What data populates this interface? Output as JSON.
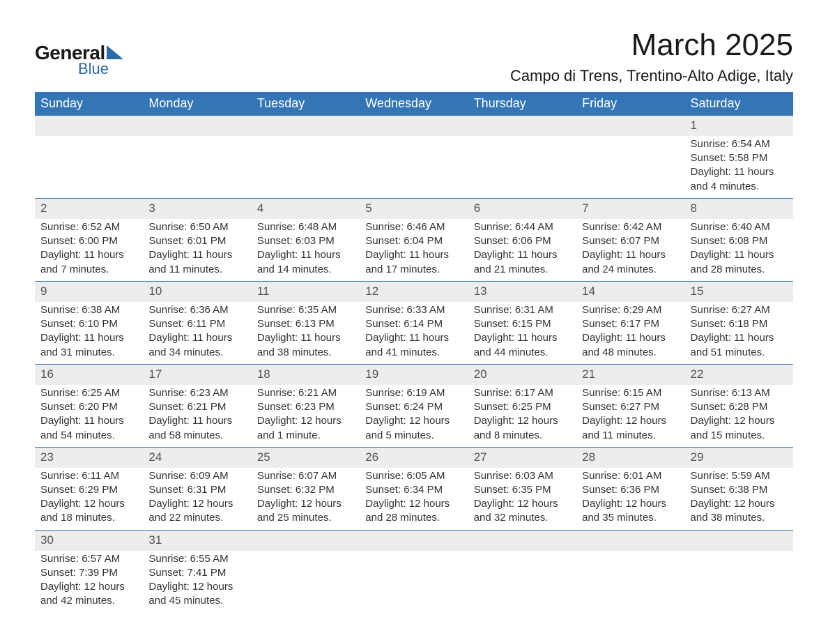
{
  "logo": {
    "text_general": "General",
    "text_blue": "Blue",
    "shape_color": "#2b6aa8"
  },
  "title": "March 2025",
  "location": "Campo di Trens, Trentino-Alto Adige, Italy",
  "colors": {
    "header_bg": "#3375b5",
    "header_text": "#ffffff",
    "daynum_bg": "#ededed",
    "row_border": "#3375b5",
    "body_text": "#333333",
    "daynum_text": "#555555"
  },
  "typography": {
    "title_fontsize": 44,
    "location_fontsize": 22,
    "header_fontsize": 18,
    "daynum_fontsize": 17,
    "body_fontsize": 15
  },
  "day_headers": [
    "Sunday",
    "Monday",
    "Tuesday",
    "Wednesday",
    "Thursday",
    "Friday",
    "Saturday"
  ],
  "weeks": [
    [
      null,
      null,
      null,
      null,
      null,
      null,
      {
        "n": "1",
        "sr": "Sunrise: 6:54 AM",
        "ss": "Sunset: 5:58 PM",
        "dl": "Daylight: 11 hours and 4 minutes."
      }
    ],
    [
      {
        "n": "2",
        "sr": "Sunrise: 6:52 AM",
        "ss": "Sunset: 6:00 PM",
        "dl": "Daylight: 11 hours and 7 minutes."
      },
      {
        "n": "3",
        "sr": "Sunrise: 6:50 AM",
        "ss": "Sunset: 6:01 PM",
        "dl": "Daylight: 11 hours and 11 minutes."
      },
      {
        "n": "4",
        "sr": "Sunrise: 6:48 AM",
        "ss": "Sunset: 6:03 PM",
        "dl": "Daylight: 11 hours and 14 minutes."
      },
      {
        "n": "5",
        "sr": "Sunrise: 6:46 AM",
        "ss": "Sunset: 6:04 PM",
        "dl": "Daylight: 11 hours and 17 minutes."
      },
      {
        "n": "6",
        "sr": "Sunrise: 6:44 AM",
        "ss": "Sunset: 6:06 PM",
        "dl": "Daylight: 11 hours and 21 minutes."
      },
      {
        "n": "7",
        "sr": "Sunrise: 6:42 AM",
        "ss": "Sunset: 6:07 PM",
        "dl": "Daylight: 11 hours and 24 minutes."
      },
      {
        "n": "8",
        "sr": "Sunrise: 6:40 AM",
        "ss": "Sunset: 6:08 PM",
        "dl": "Daylight: 11 hours and 28 minutes."
      }
    ],
    [
      {
        "n": "9",
        "sr": "Sunrise: 6:38 AM",
        "ss": "Sunset: 6:10 PM",
        "dl": "Daylight: 11 hours and 31 minutes."
      },
      {
        "n": "10",
        "sr": "Sunrise: 6:36 AM",
        "ss": "Sunset: 6:11 PM",
        "dl": "Daylight: 11 hours and 34 minutes."
      },
      {
        "n": "11",
        "sr": "Sunrise: 6:35 AM",
        "ss": "Sunset: 6:13 PM",
        "dl": "Daylight: 11 hours and 38 minutes."
      },
      {
        "n": "12",
        "sr": "Sunrise: 6:33 AM",
        "ss": "Sunset: 6:14 PM",
        "dl": "Daylight: 11 hours and 41 minutes."
      },
      {
        "n": "13",
        "sr": "Sunrise: 6:31 AM",
        "ss": "Sunset: 6:15 PM",
        "dl": "Daylight: 11 hours and 44 minutes."
      },
      {
        "n": "14",
        "sr": "Sunrise: 6:29 AM",
        "ss": "Sunset: 6:17 PM",
        "dl": "Daylight: 11 hours and 48 minutes."
      },
      {
        "n": "15",
        "sr": "Sunrise: 6:27 AM",
        "ss": "Sunset: 6:18 PM",
        "dl": "Daylight: 11 hours and 51 minutes."
      }
    ],
    [
      {
        "n": "16",
        "sr": "Sunrise: 6:25 AM",
        "ss": "Sunset: 6:20 PM",
        "dl": "Daylight: 11 hours and 54 minutes."
      },
      {
        "n": "17",
        "sr": "Sunrise: 6:23 AM",
        "ss": "Sunset: 6:21 PM",
        "dl": "Daylight: 11 hours and 58 minutes."
      },
      {
        "n": "18",
        "sr": "Sunrise: 6:21 AM",
        "ss": "Sunset: 6:23 PM",
        "dl": "Daylight: 12 hours and 1 minute."
      },
      {
        "n": "19",
        "sr": "Sunrise: 6:19 AM",
        "ss": "Sunset: 6:24 PM",
        "dl": "Daylight: 12 hours and 5 minutes."
      },
      {
        "n": "20",
        "sr": "Sunrise: 6:17 AM",
        "ss": "Sunset: 6:25 PM",
        "dl": "Daylight: 12 hours and 8 minutes."
      },
      {
        "n": "21",
        "sr": "Sunrise: 6:15 AM",
        "ss": "Sunset: 6:27 PM",
        "dl": "Daylight: 12 hours and 11 minutes."
      },
      {
        "n": "22",
        "sr": "Sunrise: 6:13 AM",
        "ss": "Sunset: 6:28 PM",
        "dl": "Daylight: 12 hours and 15 minutes."
      }
    ],
    [
      {
        "n": "23",
        "sr": "Sunrise: 6:11 AM",
        "ss": "Sunset: 6:29 PM",
        "dl": "Daylight: 12 hours and 18 minutes."
      },
      {
        "n": "24",
        "sr": "Sunrise: 6:09 AM",
        "ss": "Sunset: 6:31 PM",
        "dl": "Daylight: 12 hours and 22 minutes."
      },
      {
        "n": "25",
        "sr": "Sunrise: 6:07 AM",
        "ss": "Sunset: 6:32 PM",
        "dl": "Daylight: 12 hours and 25 minutes."
      },
      {
        "n": "26",
        "sr": "Sunrise: 6:05 AM",
        "ss": "Sunset: 6:34 PM",
        "dl": "Daylight: 12 hours and 28 minutes."
      },
      {
        "n": "27",
        "sr": "Sunrise: 6:03 AM",
        "ss": "Sunset: 6:35 PM",
        "dl": "Daylight: 12 hours and 32 minutes."
      },
      {
        "n": "28",
        "sr": "Sunrise: 6:01 AM",
        "ss": "Sunset: 6:36 PM",
        "dl": "Daylight: 12 hours and 35 minutes."
      },
      {
        "n": "29",
        "sr": "Sunrise: 5:59 AM",
        "ss": "Sunset: 6:38 PM",
        "dl": "Daylight: 12 hours and 38 minutes."
      }
    ],
    [
      {
        "n": "30",
        "sr": "Sunrise: 6:57 AM",
        "ss": "Sunset: 7:39 PM",
        "dl": "Daylight: 12 hours and 42 minutes."
      },
      {
        "n": "31",
        "sr": "Sunrise: 6:55 AM",
        "ss": "Sunset: 7:41 PM",
        "dl": "Daylight: 12 hours and 45 minutes."
      },
      null,
      null,
      null,
      null,
      null
    ]
  ]
}
